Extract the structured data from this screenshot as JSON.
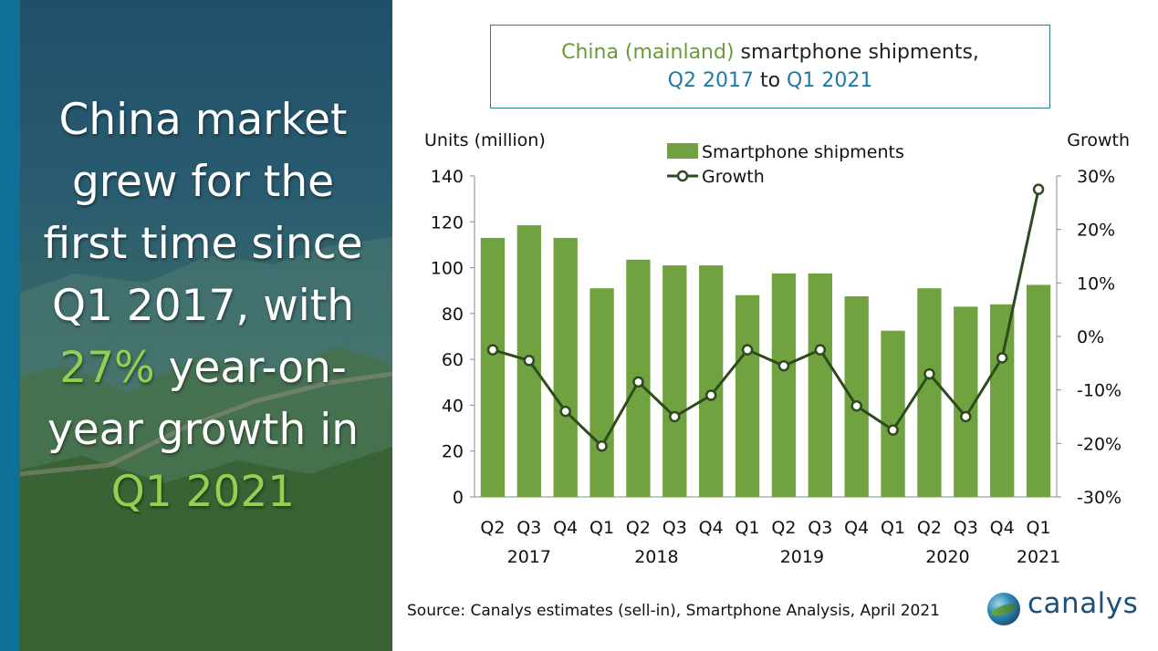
{
  "headline": {
    "line1": "China market",
    "line2": "grew for the",
    "line3": "first time since",
    "line4": "Q1 2017, with",
    "line5_highlight": "27%",
    "line5_rest": " year-on-",
    "line6": "year growth in",
    "line7_highlight": "Q1 2021",
    "highlight_color": "#92d050"
  },
  "title": {
    "part1_green": "China (mainland)",
    "part1_rest": " smartphone shipments,",
    "part2_blue_a": "Q2 2017",
    "part2_mid": " to ",
    "part2_blue_b": "Q1 2021"
  },
  "source": "Source: Canalys estimates (sell-in), Smartphone Analysis, April 2021",
  "logo_text": "canalys",
  "colors": {
    "bar": "#70a33f",
    "line": "#2f4a1f",
    "title_green": "#6a9a3a",
    "title_blue": "#1f7aa6",
    "accent_strip": "#0e6f97"
  },
  "chart_data": {
    "type": "bar",
    "ylabel_left": "Units (million)",
    "ylabel_right": "Growth",
    "ylim_left": [
      0,
      140
    ],
    "ylim_right": [
      -0.3,
      0.3
    ],
    "yticks_left": [
      "0",
      "20",
      "40",
      "60",
      "80",
      "100",
      "120",
      "140"
    ],
    "yticks_right": [
      "-30%",
      "-20%",
      "-10%",
      "0%",
      "10%",
      "20%",
      "30%"
    ],
    "categories": [
      "Q2",
      "Q3",
      "Q4",
      "Q1",
      "Q2",
      "Q3",
      "Q4",
      "Q1",
      "Q2",
      "Q3",
      "Q4",
      "Q1",
      "Q2",
      "Q3",
      "Q4",
      "Q1"
    ],
    "years": [
      {
        "label": "2017",
        "index": 1
      },
      {
        "label": "2018",
        "index": 4.5
      },
      {
        "label": "2019",
        "index": 8.5
      },
      {
        "label": "2020",
        "index": 12.5
      },
      {
        "label": "2021",
        "index": 15
      }
    ],
    "series": [
      {
        "name": "Smartphone shipments",
        "type": "bar",
        "values": [
          113,
          118.5,
          113,
          91,
          103.5,
          101,
          101,
          88,
          97.5,
          97.5,
          87.5,
          72.5,
          91,
          83,
          84,
          92.5
        ]
      },
      {
        "name": "Growth",
        "type": "line",
        "values": [
          -0.025,
          -0.045,
          -0.14,
          -0.205,
          -0.085,
          -0.15,
          -0.11,
          -0.025,
          -0.055,
          -0.025,
          -0.13,
          -0.175,
          -0.07,
          -0.15,
          -0.04,
          0.275
        ]
      }
    ],
    "legend": [
      "Smartphone shipments",
      "Growth"
    ],
    "legend_position": "top-center",
    "grid": false
  }
}
